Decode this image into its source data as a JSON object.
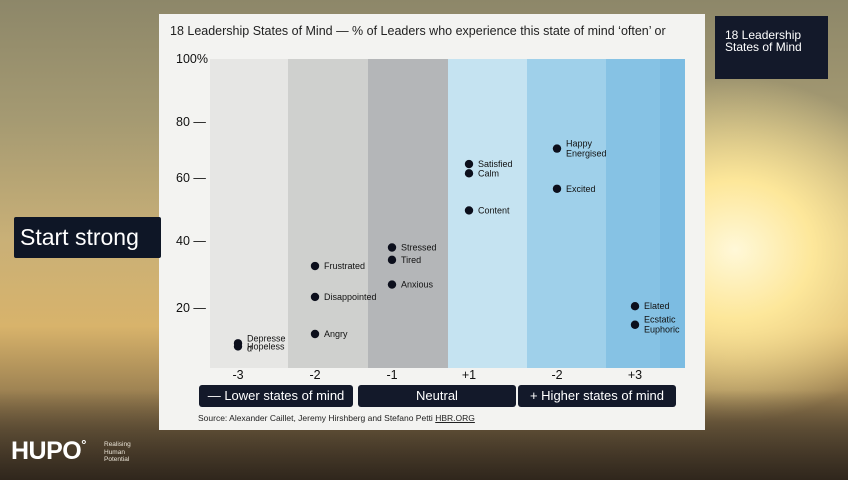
{
  "chart_title": "18 Leadership States of Mind — % of Leaders who experience this state of mind ‘often’ or",
  "corner_tag": "18 Leadership States of Mind",
  "start_label": "Start strong",
  "buttons": {
    "lower": "— Lower states of mind",
    "neutral": "Neutral",
    "higher": "+ Higher states of mind"
  },
  "source": {
    "text": "Source: Alexander Caillet, Jeremy Hirshberg and Stefano Petti",
    "link": "HBR.ORG"
  },
  "logo": {
    "name": "HUPO",
    "tagline": [
      "Realising",
      "Human",
      "Potential"
    ]
  },
  "colors": {
    "bg_band": "#e6e6e4",
    "band1": "#cfd0ce",
    "band2": "#b4b6b8",
    "band3": "#c5e3f1",
    "band4": "#9fd0ea",
    "band5": "#86c2e4",
    "band6": "#72b6df"
  },
  "chart_data": {
    "type": "scatter",
    "title": "18 Leadership States of Mind — % of Leaders who experience this state of mind ‘often’ or",
    "ylim": [
      0,
      100
    ],
    "y_ticks": [
      "100%",
      "80 —",
      "60 —",
      "40 —",
      "20 —"
    ],
    "x_ticks": [
      "-3",
      "-2",
      "-1",
      "+1",
      "-2",
      "+3"
    ],
    "points": [
      {
        "label": "Depresse\nd",
        "col": 0,
        "y": 8,
        "side": "right"
      },
      {
        "label": "Hopeless",
        "col": 0,
        "y": 7,
        "side": "right"
      },
      {
        "label": "Frustrated",
        "col": 1,
        "y": 33,
        "side": "right"
      },
      {
        "label": "Disappointed",
        "col": 1,
        "y": 23,
        "side": "right"
      },
      {
        "label": "Angry",
        "col": 1,
        "y": 11,
        "side": "right"
      },
      {
        "label": "Stressed",
        "col": 2,
        "y": 39,
        "side": "right"
      },
      {
        "label": "Tired",
        "col": 2,
        "y": 35,
        "side": "right"
      },
      {
        "label": "Anxious",
        "col": 2,
        "y": 27,
        "side": "right"
      },
      {
        "label": "Satisfied",
        "col": 3,
        "y": 66,
        "side": "right"
      },
      {
        "label": "Calm",
        "col": 3,
        "y": 63,
        "side": "right"
      },
      {
        "label": "Content",
        "col": 3,
        "y": 51,
        "side": "right"
      },
      {
        "label": "Happy\nEnergised",
        "col": 4,
        "y": 71,
        "side": "right"
      },
      {
        "label": "Excited",
        "col": 4,
        "y": 58,
        "side": "right"
      },
      {
        "label": "Elated",
        "col": 5,
        "y": 20,
        "side": "right"
      },
      {
        "label": "Ecstatic\nEuphoric",
        "col": 5,
        "y": 14,
        "side": "right"
      }
    ]
  }
}
